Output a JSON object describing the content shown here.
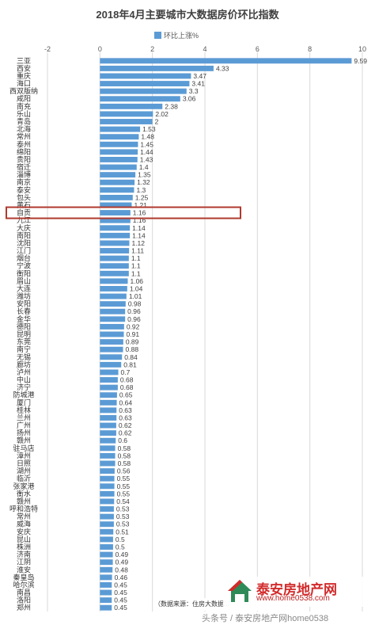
{
  "chart_data": {
    "type": "bar",
    "orientation": "horizontal",
    "title": "2018年4月主要城市大数据房价环比指数",
    "legend": {
      "label": "环比上涨%",
      "position": "top"
    },
    "xlim": [
      -2,
      10
    ],
    "xticks": [
      -2,
      0,
      2,
      4,
      6,
      8,
      10
    ],
    "grid": true,
    "highlight_index": 20,
    "categories": [
      "三亚",
      "西安",
      "重庆",
      "海口",
      "西双版纳",
      "咸阳",
      "南充",
      "乐山",
      "青岛",
      "北海",
      "常州",
      "泰州",
      "绵阳",
      "贵阳",
      "宿迁",
      "淄博",
      "南京",
      "泰安",
      "包头",
      "黄石",
      "自贡",
      "九江",
      "大庆",
      "南阳",
      "沈阳",
      "江门",
      "烟台",
      "宁波",
      "衡阳",
      "眉山",
      "大连",
      "潍坊",
      "安阳",
      "长春",
      "金华",
      "德阳",
      "昆明",
      "东莞",
      "南宁",
      "无锡",
      "廊坊",
      "泸州",
      "中山",
      "济宁",
      "防城港",
      "厦门",
      "桂林",
      "兰州",
      "广州",
      "扬州",
      "赣州",
      "驻马店",
      "漳州",
      "日照",
      "湖州",
      "临沂",
      "张家港",
      "衡水",
      "赣州",
      "呼和浩特",
      "常州",
      "威海",
      "安庆",
      "昆山",
      "株洲",
      "济南",
      "江阴",
      "淮安",
      "秦皇岛",
      "哈尔滨",
      "南昌",
      "洛阳",
      "郑州"
    ],
    "values": [
      9.59,
      4.33,
      3.47,
      3.41,
      3.3,
      3.06,
      2.38,
      2.02,
      2,
      1.53,
      1.48,
      1.45,
      1.44,
      1.43,
      1.4,
      1.35,
      1.32,
      1.3,
      1.25,
      1.21,
      1.16,
      1.16,
      1.14,
      1.14,
      1.12,
      1.11,
      1.1,
      1.1,
      1.1,
      1.06,
      1.04,
      1.01,
      0.98,
      0.96,
      0.96,
      0.92,
      0.91,
      0.89,
      0.88,
      0.84,
      0.81,
      0.7,
      0.68,
      0.68,
      0.65,
      0.64,
      0.63,
      0.63,
      0.62,
      0.62,
      0.6,
      0.58,
      0.58,
      0.58,
      0.56,
      0.55,
      0.55,
      0.55,
      0.54,
      0.53,
      0.53,
      0.53,
      0.51,
      0.5,
      0.5,
      0.49,
      0.49,
      0.48,
      0.46,
      0.45,
      0.45,
      0.45,
      0.45
    ],
    "colors": {
      "bar": "#5b9bd5",
      "highlight_box": "#b03a2e",
      "grid": "#d9d9d9"
    }
  },
  "source_note": "（数据来源：住房大数据...",
  "watermark": {
    "name": "泰安房地产网",
    "site": "www.home0538.com",
    "credit": "头条号 / 泰安房地产网home0538"
  }
}
